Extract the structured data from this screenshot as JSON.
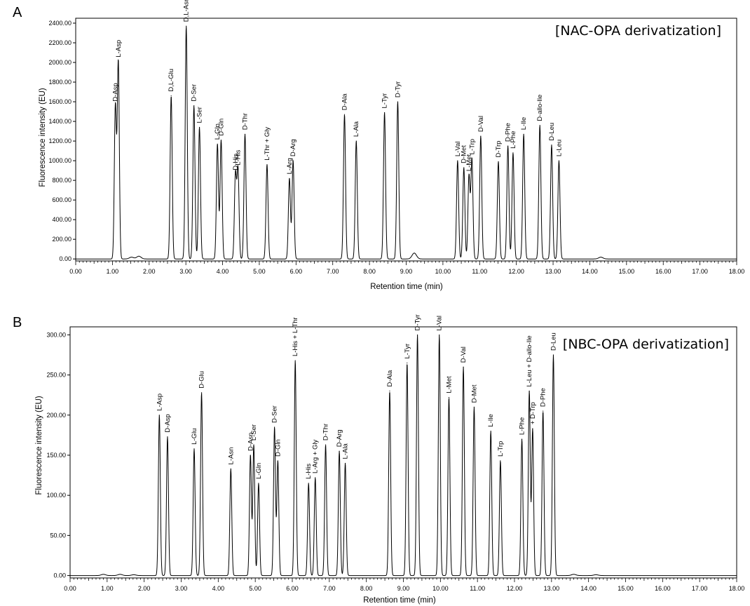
{
  "chart_data": [
    {
      "type": "line",
      "panel_letter": "A",
      "annotation": "[NAC-OPA derivatization]",
      "xlabel": "Retention time (min)",
      "ylabel": "Fluorescence intensity (EU)",
      "xlim": [
        0,
        18
      ],
      "ylim": [
        -20,
        2450
      ],
      "x_ticks": [
        "0.00",
        "1.00",
        "2.00",
        "3.00",
        "4.00",
        "5.00",
        "6.00",
        "7.00",
        "8.00",
        "9.00",
        "10.00",
        "11.00",
        "12.00",
        "13.00",
        "14.00",
        "15.00",
        "16.00",
        "17.00",
        "18.00"
      ],
      "y_ticks": [
        "0.00",
        "200.00",
        "400.00",
        "600.00",
        "800.00",
        "1000.00",
        "1200.00",
        "1400.00",
        "1600.00",
        "1800.00",
        "2000.00",
        "2200.00",
        "2400.00"
      ],
      "baseline": 0,
      "peaks": [
        {
          "label": "D-Asp",
          "x": 1.08,
          "y": 1560
        },
        {
          "label": "L-Asp",
          "x": 1.16,
          "y": 2010
        },
        {
          "label": "D,L-Glu",
          "x": 2.6,
          "y": 1660
        },
        {
          "label": "D,L-Asn",
          "x": 3.01,
          "y": 2370
        },
        {
          "label": "D-Ser",
          "x": 3.22,
          "y": 1560
        },
        {
          "label": "L-Ser",
          "x": 3.37,
          "y": 1340
        },
        {
          "label": "L-Gln",
          "x": 3.86,
          "y": 1170
        },
        {
          "label": "D-Gln",
          "x": 3.96,
          "y": 1210
        },
        {
          "label": "D-His",
          "x": 4.35,
          "y": 860
        },
        {
          "label": "L-His",
          "x": 4.42,
          "y": 910
        },
        {
          "label": "D-Thr",
          "x": 4.61,
          "y": 1270
        },
        {
          "label": "L-Thr + Gly",
          "x": 5.21,
          "y": 960
        },
        {
          "label": "L-Arg",
          "x": 5.82,
          "y": 820
        },
        {
          "label": "D-Arg",
          "x": 5.92,
          "y": 1000
        },
        {
          "label": "D-Ala",
          "x": 7.32,
          "y": 1470
        },
        {
          "label": "L-Ala",
          "x": 7.64,
          "y": 1200
        },
        {
          "label": "L-Tyr",
          "x": 8.41,
          "y": 1490
        },
        {
          "label": "D-Tyr",
          "x": 8.77,
          "y": 1600
        },
        {
          "label": "L-Val",
          "x": 10.4,
          "y": 1000
        },
        {
          "label": "D-Met",
          "x": 10.57,
          "y": 930
        },
        {
          "label": "L-Met",
          "x": 10.71,
          "y": 850
        },
        {
          "label": "L-Trp",
          "x": 10.79,
          "y": 1020
        },
        {
          "label": "D-Val",
          "x": 11.03,
          "y": 1250
        },
        {
          "label": "D-Trp",
          "x": 11.51,
          "y": 990
        },
        {
          "label": "D-Phe",
          "x": 11.77,
          "y": 1150
        },
        {
          "label": "L-Phe",
          "x": 11.91,
          "y": 1080
        },
        {
          "label": "L-Ile",
          "x": 12.2,
          "y": 1270
        },
        {
          "label": "D-allo-Ile",
          "x": 12.64,
          "y": 1360
        },
        {
          "label": "D-Leu",
          "x": 12.96,
          "y": 1160
        },
        {
          "label": "L-Leu",
          "x": 13.16,
          "y": 1000
        }
      ],
      "minor_bumps": [
        {
          "x": 1.52,
          "y": 18
        },
        {
          "x": 1.72,
          "y": 28
        },
        {
          "x": 9.22,
          "y": 60
        },
        {
          "x": 14.3,
          "y": 18
        }
      ]
    },
    {
      "type": "line",
      "panel_letter": "B",
      "annotation": "[NBC-OPA derivatization]",
      "xlabel": "Retention time (min)",
      "ylabel": "Fluorescence intensity (EU)",
      "xlim": [
        0,
        18
      ],
      "ylim": [
        -3,
        310
      ],
      "x_ticks": [
        "0.00",
        "1.00",
        "2.00",
        "3.00",
        "4.00",
        "5.00",
        "6.00",
        "7.00",
        "8.00",
        "9.00",
        "10.00",
        "11.00",
        "12.00",
        "13.00",
        "14.00",
        "15.00",
        "16.00",
        "17.00",
        "18.00"
      ],
      "y_ticks": [
        "0.00",
        "50.00",
        "100.00",
        "150.00",
        "200.00",
        "250.00",
        "300.00"
      ],
      "baseline": 0,
      "peaks": [
        {
          "label": "L-Asp",
          "x": 2.41,
          "y": 200
        },
        {
          "label": "D-Asp",
          "x": 2.63,
          "y": 173
        },
        {
          "label": "L-Glu",
          "x": 3.35,
          "y": 158
        },
        {
          "label": "D-Glu",
          "x": 3.55,
          "y": 228
        },
        {
          "label": "L-Asn",
          "x": 4.34,
          "y": 133
        },
        {
          "label": "D-Asn",
          "x": 4.87,
          "y": 150
        },
        {
          "label": "L-Ser",
          "x": 4.96,
          "y": 163
        },
        {
          "label": "L-Gln",
          "x": 5.09,
          "y": 115
        },
        {
          "label": "D-Ser",
          "x": 5.52,
          "y": 185
        },
        {
          "label": "D-Gln",
          "x": 5.61,
          "y": 143
        },
        {
          "label": "L-His + L-Thr",
          "x": 6.08,
          "y": 268
        },
        {
          "label": "L-His",
          "x": 6.44,
          "y": 115
        },
        {
          "label": "L-Arg + Gly",
          "x": 6.62,
          "y": 122
        },
        {
          "label": "D-Thr",
          "x": 6.9,
          "y": 163
        },
        {
          "label": "D-Arg",
          "x": 7.27,
          "y": 155
        },
        {
          "label": "L-Ala",
          "x": 7.43,
          "y": 140
        },
        {
          "label": "D-Ala",
          "x": 8.63,
          "y": 230
        },
        {
          "label": "L-Tyr",
          "x": 9.1,
          "y": 265
        },
        {
          "label": "D-Tyr",
          "x": 9.38,
          "y": 300
        },
        {
          "label": "L-Val",
          "x": 9.97,
          "y": 300
        },
        {
          "label": "L-Met",
          "x": 10.23,
          "y": 222
        },
        {
          "label": "D-Val",
          "x": 10.62,
          "y": 260
        },
        {
          "label": "D-Met",
          "x": 10.91,
          "y": 210
        },
        {
          "label": "L-Ile",
          "x": 11.36,
          "y": 180
        },
        {
          "label": "L-Trp",
          "x": 11.62,
          "y": 143
        },
        {
          "label": "L-Phe",
          "x": 12.2,
          "y": 170
        },
        {
          "label": "L-Leu + D-allo-Ile",
          "x": 12.4,
          "y": 230
        },
        {
          "label": "+ D-Trp",
          "x": 12.49,
          "y": 183
        },
        {
          "label": "D-Phe",
          "x": 12.77,
          "y": 205
        },
        {
          "label": "D-Leu",
          "x": 13.05,
          "y": 275
        }
      ],
      "minor_bumps": [
        {
          "x": 0.9,
          "y": 1.5
        },
        {
          "x": 1.35,
          "y": 1.5
        },
        {
          "x": 1.72,
          "y": 1.0
        },
        {
          "x": 13.6,
          "y": 1.5
        },
        {
          "x": 14.2,
          "y": 1.0
        }
      ]
    }
  ]
}
